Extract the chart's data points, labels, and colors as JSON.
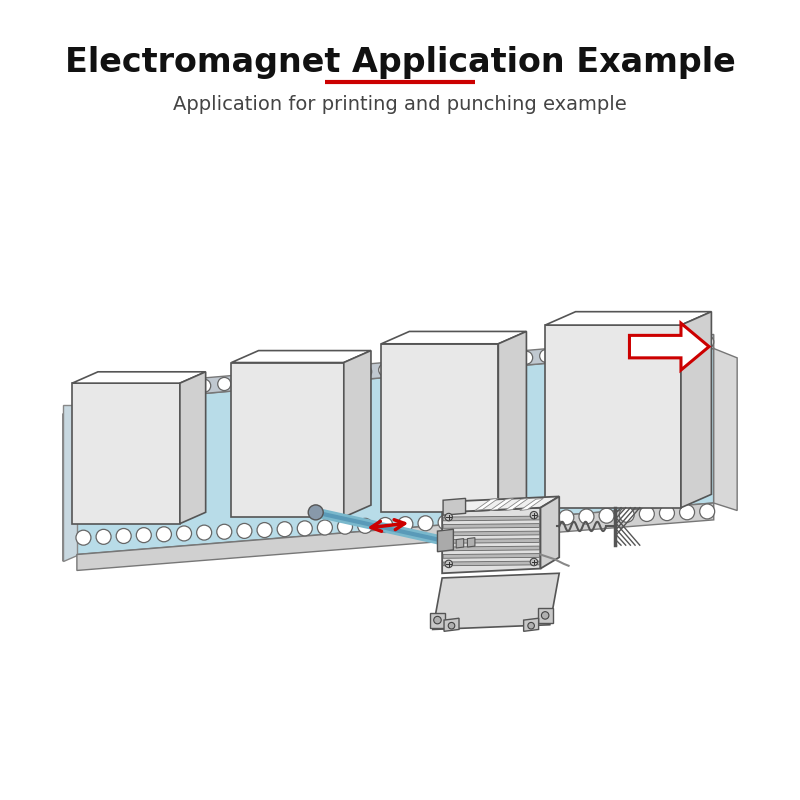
{
  "title": "Electromagnet Application Example",
  "subtitle": "Application for printing and punching example",
  "title_fontsize": 24,
  "subtitle_fontsize": 14,
  "title_color": "#111111",
  "subtitle_color": "#444444",
  "red_line_color": "#cc0000",
  "bg_color": "#ffffff",
  "conveyor_fill": "#b8dce8",
  "conveyor_edge": "#777777",
  "box_fill_front": "#e8e8e8",
  "box_fill_top": "#ffffff",
  "box_fill_right": "#d0d0d0",
  "box_edge": "#555555",
  "arrow_red": "#cc0000",
  "arrow_outline": "#cc0000",
  "chain_fill": "#ffffff",
  "chain_edge": "#666666"
}
